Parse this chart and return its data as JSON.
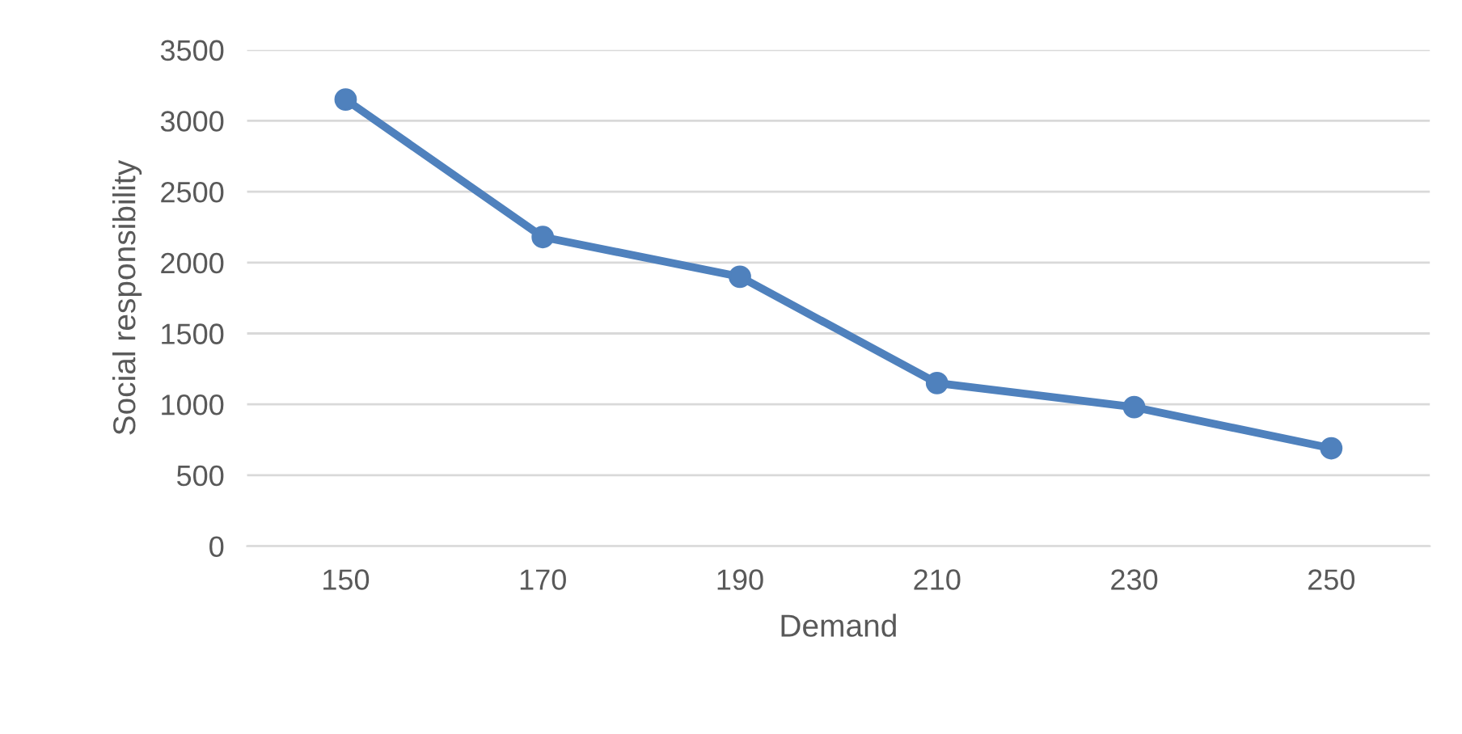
{
  "chart_data": {
    "type": "line",
    "xlabel": "Demand",
    "ylabel": "Social responsibility",
    "categories": [
      "150",
      "170",
      "190",
      "210",
      "230",
      "250"
    ],
    "series": [
      {
        "color": "#4f81bd",
        "values": [
          3150,
          2180,
          1900,
          1150,
          980,
          690
        ]
      }
    ],
    "ylim": [
      0,
      3500
    ],
    "yticks": [
      0,
      500,
      1000,
      1500,
      2000,
      2500,
      3000,
      3500
    ],
    "grid": "y",
    "marker": "circle",
    "line_style": "solid"
  }
}
